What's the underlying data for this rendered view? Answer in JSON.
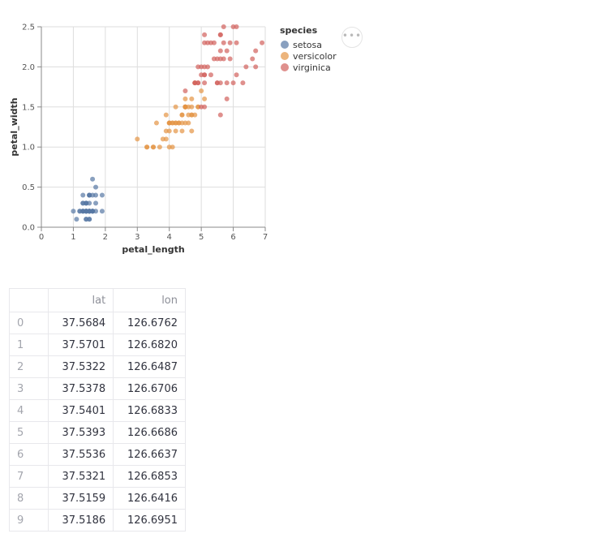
{
  "chart_data": {
    "type": "scatter",
    "xlabel": "petal_length",
    "ylabel": "petal_width",
    "xlim": [
      0,
      7
    ],
    "ylim": [
      0,
      2.5
    ],
    "xticks": [
      0,
      1,
      2,
      3,
      4,
      5,
      6,
      7
    ],
    "yticks": [
      "0.0",
      "0.5",
      "1.0",
      "1.5",
      "2.0",
      "2.5"
    ],
    "grid": true,
    "legend": {
      "title": "species",
      "placement": "right"
    },
    "series": [
      {
        "name": "setosa",
        "color": "#5778a4",
        "points": [
          [
            1.4,
            0.2
          ],
          [
            1.4,
            0.2
          ],
          [
            1.3,
            0.2
          ],
          [
            1.5,
            0.2
          ],
          [
            1.4,
            0.2
          ],
          [
            1.7,
            0.4
          ],
          [
            1.4,
            0.3
          ],
          [
            1.5,
            0.2
          ],
          [
            1.4,
            0.2
          ],
          [
            1.5,
            0.1
          ],
          [
            1.5,
            0.2
          ],
          [
            1.6,
            0.2
          ],
          [
            1.4,
            0.1
          ],
          [
            1.1,
            0.1
          ],
          [
            1.2,
            0.2
          ],
          [
            1.5,
            0.4
          ],
          [
            1.3,
            0.4
          ],
          [
            1.4,
            0.3
          ],
          [
            1.7,
            0.3
          ],
          [
            1.5,
            0.3
          ],
          [
            1.7,
            0.2
          ],
          [
            1.5,
            0.4
          ],
          [
            1.0,
            0.2
          ],
          [
            1.7,
            0.5
          ],
          [
            1.9,
            0.2
          ],
          [
            1.6,
            0.2
          ],
          [
            1.6,
            0.4
          ],
          [
            1.5,
            0.2
          ],
          [
            1.4,
            0.2
          ],
          [
            1.6,
            0.2
          ],
          [
            1.6,
            0.2
          ],
          [
            1.5,
            0.4
          ],
          [
            1.5,
            0.1
          ],
          [
            1.4,
            0.2
          ],
          [
            1.5,
            0.2
          ],
          [
            1.2,
            0.2
          ],
          [
            1.3,
            0.2
          ],
          [
            1.4,
            0.1
          ],
          [
            1.3,
            0.2
          ],
          [
            1.5,
            0.2
          ],
          [
            1.3,
            0.3
          ],
          [
            1.3,
            0.3
          ],
          [
            1.3,
            0.2
          ],
          [
            1.6,
            0.6
          ],
          [
            1.9,
            0.4
          ],
          [
            1.4,
            0.3
          ],
          [
            1.6,
            0.2
          ],
          [
            1.4,
            0.2
          ],
          [
            1.5,
            0.2
          ],
          [
            1.4,
            0.2
          ]
        ]
      },
      {
        "name": "versicolor",
        "color": "#e49444",
        "points": [
          [
            4.7,
            1.4
          ],
          [
            4.5,
            1.5
          ],
          [
            4.9,
            1.5
          ],
          [
            4.0,
            1.3
          ],
          [
            4.6,
            1.5
          ],
          [
            4.5,
            1.3
          ],
          [
            4.7,
            1.6
          ],
          [
            3.3,
            1.0
          ],
          [
            4.6,
            1.3
          ],
          [
            3.9,
            1.4
          ],
          [
            3.5,
            1.0
          ],
          [
            4.2,
            1.5
          ],
          [
            4.0,
            1.0
          ],
          [
            4.7,
            1.4
          ],
          [
            3.6,
            1.3
          ],
          [
            4.4,
            1.4
          ],
          [
            4.5,
            1.5
          ],
          [
            4.1,
            1.0
          ],
          [
            4.5,
            1.5
          ],
          [
            3.9,
            1.1
          ],
          [
            4.8,
            1.8
          ],
          [
            4.0,
            1.3
          ],
          [
            4.9,
            1.5
          ],
          [
            4.7,
            1.2
          ],
          [
            4.3,
            1.3
          ],
          [
            4.4,
            1.4
          ],
          [
            4.8,
            1.4
          ],
          [
            5.0,
            1.7
          ],
          [
            4.5,
            1.5
          ],
          [
            3.5,
            1.0
          ],
          [
            3.8,
            1.1
          ],
          [
            3.7,
            1.0
          ],
          [
            3.9,
            1.2
          ],
          [
            5.1,
            1.6
          ],
          [
            4.5,
            1.5
          ],
          [
            4.5,
            1.6
          ],
          [
            4.7,
            1.5
          ],
          [
            4.4,
            1.3
          ],
          [
            4.1,
            1.3
          ],
          [
            4.0,
            1.3
          ],
          [
            4.4,
            1.2
          ],
          [
            4.6,
            1.4
          ],
          [
            4.0,
            1.2
          ],
          [
            3.3,
            1.0
          ],
          [
            4.2,
            1.3
          ],
          [
            4.2,
            1.2
          ],
          [
            4.2,
            1.3
          ],
          [
            4.3,
            1.3
          ],
          [
            3.0,
            1.1
          ],
          [
            4.1,
            1.3
          ]
        ]
      },
      {
        "name": "virginica",
        "color": "#d1615d",
        "points": [
          [
            6.0,
            2.5
          ],
          [
            5.1,
            1.9
          ],
          [
            5.9,
            2.1
          ],
          [
            5.6,
            1.8
          ],
          [
            5.8,
            2.2
          ],
          [
            6.6,
            2.1
          ],
          [
            4.5,
            1.7
          ],
          [
            6.3,
            1.8
          ],
          [
            5.8,
            1.8
          ],
          [
            6.1,
            2.5
          ],
          [
            5.1,
            2.0
          ],
          [
            5.3,
            1.9
          ],
          [
            5.5,
            2.1
          ],
          [
            5.0,
            2.0
          ],
          [
            5.1,
            2.4
          ],
          [
            5.3,
            2.3
          ],
          [
            5.5,
            1.8
          ],
          [
            6.7,
            2.2
          ],
          [
            6.9,
            2.3
          ],
          [
            5.0,
            1.5
          ],
          [
            5.7,
            2.3
          ],
          [
            4.9,
            2.0
          ],
          [
            6.7,
            2.0
          ],
          [
            4.9,
            1.8
          ],
          [
            5.7,
            2.1
          ],
          [
            6.0,
            1.8
          ],
          [
            4.8,
            1.8
          ],
          [
            4.9,
            1.8
          ],
          [
            5.6,
            2.1
          ],
          [
            5.8,
            1.6
          ],
          [
            6.1,
            1.9
          ],
          [
            6.4,
            2.0
          ],
          [
            5.6,
            2.2
          ],
          [
            5.1,
            1.5
          ],
          [
            5.6,
            1.4
          ],
          [
            6.1,
            2.3
          ],
          [
            5.6,
            2.4
          ],
          [
            5.5,
            1.8
          ],
          [
            4.8,
            1.8
          ],
          [
            5.4,
            2.1
          ],
          [
            5.6,
            2.4
          ],
          [
            5.1,
            2.3
          ],
          [
            5.1,
            1.9
          ],
          [
            5.9,
            2.3
          ],
          [
            5.7,
            2.5
          ],
          [
            5.2,
            2.3
          ],
          [
            5.0,
            1.9
          ],
          [
            5.2,
            2.0
          ],
          [
            5.4,
            2.3
          ],
          [
            5.1,
            1.8
          ]
        ]
      }
    ]
  },
  "table": {
    "columns": [
      "lat",
      "lon"
    ],
    "rows": [
      {
        "index": "0",
        "lat": "37.5684",
        "lon": "126.6762"
      },
      {
        "index": "1",
        "lat": "37.5701",
        "lon": "126.6820"
      },
      {
        "index": "2",
        "lat": "37.5322",
        "lon": "126.6487"
      },
      {
        "index": "3",
        "lat": "37.5378",
        "lon": "126.6706"
      },
      {
        "index": "4",
        "lat": "37.5401",
        "lon": "126.6833"
      },
      {
        "index": "5",
        "lat": "37.5393",
        "lon": "126.6686"
      },
      {
        "index": "6",
        "lat": "37.5536",
        "lon": "126.6637"
      },
      {
        "index": "7",
        "lat": "37.5321",
        "lon": "126.6853"
      },
      {
        "index": "8",
        "lat": "37.5159",
        "lon": "126.6416"
      },
      {
        "index": "9",
        "lat": "37.5186",
        "lon": "126.6951"
      }
    ]
  },
  "icons": {
    "chart_menu": "more-horizontal-icon"
  }
}
